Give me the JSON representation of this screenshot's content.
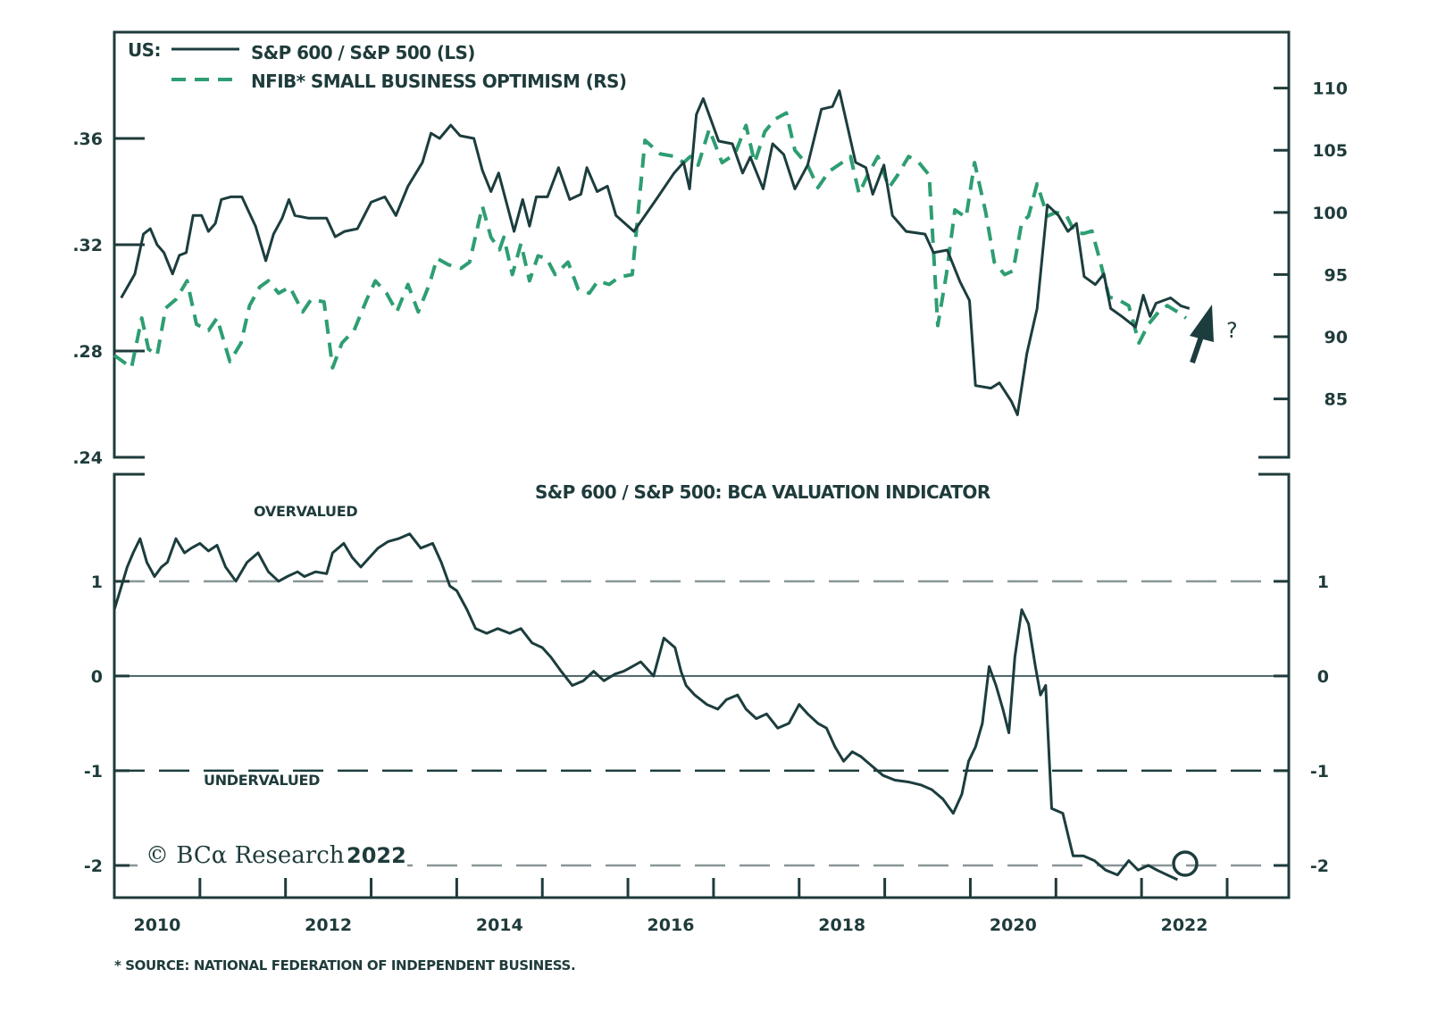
{
  "chart_data": [
    {
      "type": "line",
      "panel": "top",
      "title": "",
      "legend_prefix": "US:",
      "legend_placement": "top-left",
      "x_ticks": [
        "2010",
        "2012",
        "2014",
        "2016",
        "2018",
        "2020",
        "2022"
      ],
      "xlim": [
        2010.0,
        2023.72
      ],
      "left_axis": {
        "ticks": [
          ".36",
          ".32",
          ".28",
          ".24"
        ],
        "tick_values": [
          0.36,
          0.32,
          0.28,
          0.24
        ],
        "ylim": [
          0.24,
          0.4
        ]
      },
      "right_axis": {
        "ticks": [
          "110",
          "105",
          "100",
          "95",
          "90",
          "85"
        ],
        "tick_values": [
          110,
          105,
          100,
          95,
          90,
          85
        ],
        "ylim": [
          80.3,
          114.5
        ]
      },
      "annotation": "?",
      "annotation_arrow": "up-arrow",
      "series": [
        {
          "name": "S&P 600 / S&P 500 (LS)",
          "axis": "left",
          "style": "solid",
          "color": "#1c3d3d",
          "x": [
            2010.08,
            2010.24,
            2010.34,
            2010.42,
            2010.5,
            2010.58,
            2010.68,
            2010.76,
            2010.84,
            2010.92,
            2011.02,
            2011.1,
            2011.18,
            2011.25,
            2011.36,
            2011.49,
            2011.65,
            2011.77,
            2011.86,
            2011.96,
            2012.04,
            2012.11,
            2012.27,
            2012.48,
            2012.58,
            2012.69,
            2012.84,
            2013.0,
            2013.16,
            2013.29,
            2013.43,
            2013.6,
            2013.7,
            2013.8,
            2013.93,
            2014.04,
            2014.2,
            2014.3,
            2014.4,
            2014.49,
            2014.67,
            2014.77,
            2014.85,
            2014.93,
            2015.06,
            2015.19,
            2015.32,
            2015.45,
            2015.52,
            2015.64,
            2015.76,
            2015.86,
            2016.07,
            2016.33,
            2016.54,
            2016.65,
            2016.72,
            2016.8,
            2016.88,
            2017.06,
            2017.22,
            2017.34,
            2017.43,
            2017.58,
            2017.69,
            2017.82,
            2017.95,
            2018.1,
            2018.26,
            2018.39,
            2018.47,
            2018.66,
            2018.78,
            2018.86,
            2018.99,
            2019.09,
            2019.25,
            2019.47,
            2019.57,
            2019.73,
            2019.88,
            2019.99,
            2020.06,
            2020.24,
            2020.34,
            2020.48,
            2020.55,
            2020.66,
            2020.78,
            2020.9,
            2021.03,
            2021.14,
            2021.24,
            2021.33,
            2021.46,
            2021.56,
            2021.64,
            2021.77,
            2021.93,
            2022.02,
            2022.1,
            2022.17,
            2022.34,
            2022.46,
            2022.56
          ],
          "values": [
            0.3,
            0.309,
            0.324,
            0.326,
            0.32,
            0.317,
            0.309,
            0.316,
            0.317,
            0.331,
            0.331,
            0.325,
            0.328,
            0.337,
            0.338,
            0.338,
            0.327,
            0.314,
            0.324,
            0.33,
            0.337,
            0.331,
            0.33,
            0.33,
            0.323,
            0.325,
            0.326,
            0.336,
            0.338,
            0.331,
            0.342,
            0.351,
            0.362,
            0.36,
            0.365,
            0.361,
            0.36,
            0.348,
            0.34,
            0.347,
            0.325,
            0.337,
            0.327,
            0.338,
            0.338,
            0.349,
            0.337,
            0.339,
            0.349,
            0.34,
            0.342,
            0.331,
            0.325,
            0.337,
            0.347,
            0.351,
            0.341,
            0.369,
            0.375,
            0.359,
            0.358,
            0.347,
            0.353,
            0.341,
            0.358,
            0.354,
            0.341,
            0.35,
            0.371,
            0.372,
            0.378,
            0.351,
            0.349,
            0.339,
            0.35,
            0.331,
            0.325,
            0.324,
            0.317,
            0.318,
            0.306,
            0.299,
            0.267,
            0.266,
            0.268,
            0.261,
            0.256,
            0.279,
            0.296,
            0.335,
            0.331,
            0.325,
            0.328,
            0.308,
            0.305,
            0.309,
            0.296,
            0.293,
            0.289,
            0.301,
            0.293,
            0.298,
            0.3,
            0.297,
            0.296
          ]
        },
        {
          "name": "NFIB* SMALL BUSINESS OPTIMISM (RS)",
          "axis": "right",
          "style": "dashed",
          "color": "#2e9e72",
          "x": [
            2010.0,
            2010.1,
            2010.2,
            2010.32,
            2010.4,
            2010.5,
            2010.6,
            2010.72,
            2010.85,
            2010.96,
            2011.1,
            2011.2,
            2011.35,
            2011.48,
            2011.58,
            2011.7,
            2011.8,
            2011.92,
            2012.05,
            2012.2,
            2012.3,
            2012.45,
            2012.55,
            2012.66,
            2012.8,
            2012.95,
            2013.05,
            2013.18,
            2013.3,
            2013.43,
            2013.55,
            2013.68,
            2013.77,
            2013.9,
            2014.05,
            2014.15,
            2014.3,
            2014.4,
            2014.5,
            2014.55,
            2014.65,
            2014.75,
            2014.85,
            2014.95,
            2015.05,
            2015.15,
            2015.3,
            2015.42,
            2015.55,
            2015.65,
            2015.78,
            2015.9,
            2016.05,
            2016.2,
            2016.38,
            2016.55,
            2016.65,
            2016.73,
            2016.82,
            2016.95,
            2017.1,
            2017.25,
            2017.38,
            2017.48,
            2017.6,
            2017.72,
            2017.85,
            2017.95,
            2018.1,
            2018.22,
            2018.35,
            2018.5,
            2018.6,
            2018.7,
            2018.8,
            2018.92,
            2019.05,
            2019.15,
            2019.28,
            2019.4,
            2019.52,
            2019.62,
            2019.72,
            2019.82,
            2019.95,
            2020.05,
            2020.18,
            2020.28,
            2020.4,
            2020.5,
            2020.6,
            2020.68,
            2020.78,
            2020.9,
            2021.0,
            2021.12,
            2021.22,
            2021.32,
            2021.42,
            2021.52,
            2021.62,
            2021.72,
            2021.85,
            2021.97,
            2022.08,
            2022.2,
            2022.3,
            2022.42,
            2022.52
          ],
          "values": [
            88.5,
            88.0,
            87.5,
            91.5,
            89.0,
            88.5,
            92.3,
            93.0,
            94.5,
            91.0,
            90.5,
            91.5,
            88.0,
            89.5,
            92.5,
            94.0,
            94.5,
            93.5,
            94.0,
            92.0,
            93.0,
            92.8,
            87.5,
            89.5,
            90.5,
            93.0,
            94.5,
            93.5,
            92.0,
            94.2,
            92.0,
            94.2,
            96.3,
            95.8,
            95.5,
            96.0,
            100.5,
            98.0,
            97.0,
            98.0,
            95.0,
            97.5,
            94.5,
            96.5,
            96.3,
            95.0,
            96.0,
            93.8,
            93.5,
            94.5,
            94.2,
            94.8,
            95.0,
            105.8,
            104.7,
            104.5,
            104.0,
            104.5,
            103.8,
            106.7,
            104.0,
            104.7,
            107.0,
            104.0,
            106.5,
            107.5,
            108.0,
            105.0,
            103.8,
            102.0,
            103.3,
            104.0,
            104.5,
            101.5,
            103.0,
            104.5,
            102.0,
            103.0,
            104.5,
            104.0,
            103.0,
            90.9,
            95.0,
            100.2,
            99.6,
            104.0,
            100.0,
            96.0,
            95.0,
            95.3,
            99.2,
            99.7,
            102.3,
            99.7,
            100.0,
            99.8,
            98.4,
            98.3,
            98.5,
            96.0,
            93.2,
            93.0,
            92.5,
            89.5,
            91.0,
            92.0,
            92.5,
            92.0,
            91.5
          ]
        }
      ]
    },
    {
      "type": "line",
      "panel": "bottom",
      "title": "S&P 600 / S&P 500: BCA VALUATION INDICATOR",
      "x_ticks": [
        "2010",
        "2012",
        "2014",
        "2016",
        "2018",
        "2020",
        "2022"
      ],
      "xlim": [
        2010.0,
        2023.72
      ],
      "y_ticks": [
        "1",
        "0",
        "-1",
        "-2"
      ],
      "y_tick_values": [
        1,
        0,
        -1,
        -2
      ],
      "ylim": [
        -2.34,
        2.13
      ],
      "reference_lines": [
        {
          "value": 1,
          "style": "dashed",
          "color": "#8a9697"
        },
        {
          "value": 0,
          "style": "solid",
          "color": "#4a6262"
        },
        {
          "value": -1,
          "style": "dashed",
          "color": "#1c3d3d"
        },
        {
          "value": -2,
          "style": "dashed",
          "color": "#8a9697"
        }
      ],
      "annotations": [
        "OVERVALUED",
        "UNDERVALUED"
      ],
      "series": [
        {
          "name": "BCA Valuation Indicator",
          "style": "solid",
          "color": "#1c3d3d",
          "x": [
            2010.0,
            2010.06,
            2010.15,
            2010.22,
            2010.3,
            2010.38,
            2010.47,
            2010.55,
            2010.62,
            2010.72,
            2010.82,
            2010.9,
            2011.0,
            2011.1,
            2011.2,
            2011.3,
            2011.42,
            2011.55,
            2011.68,
            2011.8,
            2011.92,
            2012.02,
            2012.14,
            2012.22,
            2012.35,
            2012.48,
            2012.55,
            2012.68,
            2012.78,
            2012.88,
            2012.98,
            2013.08,
            2013.2,
            2013.32,
            2013.45,
            2013.58,
            2013.72,
            2013.82,
            2013.92,
            2014.0,
            2014.12,
            2014.22,
            2014.35,
            2014.48,
            2014.62,
            2014.75,
            2014.88,
            2015.0,
            2015.1,
            2015.22,
            2015.35,
            2015.48,
            2015.6,
            2015.72,
            2015.85,
            2015.95,
            2016.05,
            2016.15,
            2016.3,
            2016.42,
            2016.55,
            2016.62,
            2016.68,
            2016.78,
            2016.92,
            2017.05,
            2017.15,
            2017.28,
            2017.38,
            2017.5,
            2017.62,
            2017.75,
            2017.88,
            2018.0,
            2018.1,
            2018.22,
            2018.32,
            2018.42,
            2018.52,
            2018.62,
            2018.72,
            2018.85,
            2018.98,
            2019.12,
            2019.28,
            2019.42,
            2019.55,
            2019.68,
            2019.8,
            2019.9,
            2019.98,
            2020.06,
            2020.14,
            2020.22,
            2020.3,
            2020.38,
            2020.45,
            2020.52,
            2020.6,
            2020.68,
            2020.76,
            2020.82,
            2020.88,
            2020.95,
            2021.08,
            2021.2,
            2021.32,
            2021.45,
            2021.58,
            2021.72,
            2021.85,
            2021.96,
            2022.08,
            2022.18,
            2022.3,
            2022.42
          ],
          "values": [
            0.7,
            0.88,
            1.15,
            1.3,
            1.45,
            1.2,
            1.05,
            1.15,
            1.2,
            1.45,
            1.3,
            1.35,
            1.4,
            1.32,
            1.38,
            1.15,
            1.0,
            1.2,
            1.3,
            1.1,
            1.0,
            1.05,
            1.1,
            1.05,
            1.1,
            1.08,
            1.3,
            1.4,
            1.25,
            1.15,
            1.25,
            1.35,
            1.42,
            1.45,
            1.5,
            1.35,
            1.4,
            1.2,
            0.95,
            0.9,
            0.7,
            0.5,
            0.45,
            0.5,
            0.45,
            0.5,
            0.35,
            0.3,
            0.2,
            0.05,
            -0.1,
            -0.05,
            0.05,
            -0.05,
            0.02,
            0.05,
            0.1,
            0.15,
            0.0,
            0.4,
            0.3,
            0.05,
            -0.1,
            -0.2,
            -0.3,
            -0.35,
            -0.25,
            -0.2,
            -0.35,
            -0.45,
            -0.4,
            -0.55,
            -0.5,
            -0.3,
            -0.4,
            -0.5,
            -0.55,
            -0.75,
            -0.9,
            -0.8,
            -0.85,
            -0.95,
            -1.05,
            -1.1,
            -1.12,
            -1.15,
            -1.2,
            -1.3,
            -1.45,
            -1.25,
            -0.9,
            -0.75,
            -0.5,
            0.1,
            -0.1,
            -0.35,
            -0.6,
            0.2,
            0.7,
            0.55,
            0.1,
            -0.2,
            -0.1,
            -1.4,
            -1.45,
            -1.9,
            -1.9,
            -1.95,
            -2.05,
            -2.1,
            -1.95,
            -2.05,
            -2.0,
            -2.05,
            -2.1,
            -2.15
          ]
        }
      ]
    }
  ],
  "labels": {
    "legend_prefix": "US:",
    "legend_series_1": "S&P 600 / S&P 500 (LS)",
    "legend_series_2": "NFIB* SMALL BUSINESS OPTIMISM (RS)",
    "bottom_title": "S&P 600 / S&P 500: BCA VALUATION INDICATOR",
    "overvalued": "OVERVALUED",
    "undervalued": "UNDERVALUED",
    "question": "?",
    "copyright": "© BCα Research",
    "copyright_year": "2022",
    "footnote": "* SOURCE: NATIONAL FEDERATION OF INDEPENDENT BUSINESS."
  }
}
